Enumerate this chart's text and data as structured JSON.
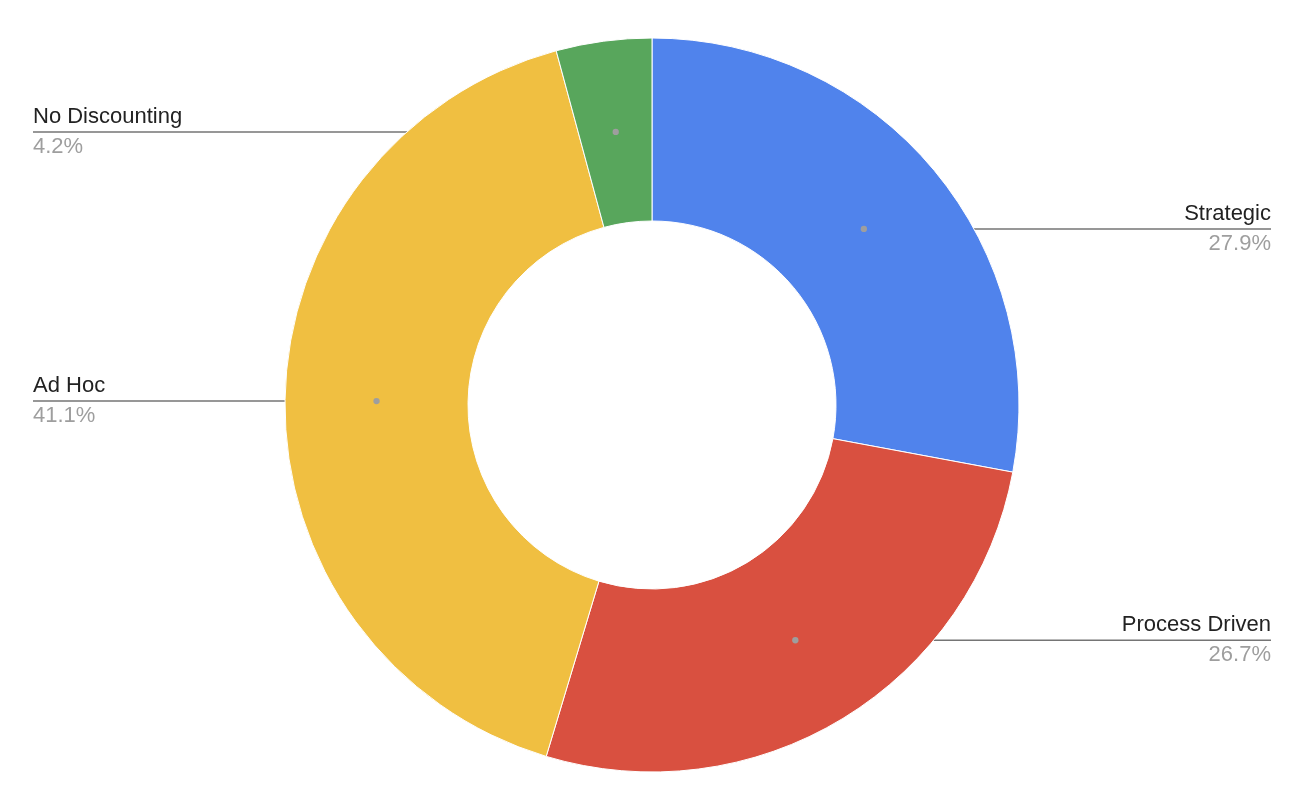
{
  "chart_data": {
    "type": "donut",
    "categories": [
      "Strategic",
      "Process Driven",
      "Ad Hoc",
      "No Discounting"
    ],
    "values": [
      27.9,
      26.7,
      41.1,
      4.2
    ],
    "value_labels": [
      "27.9%",
      "26.7%",
      "41.1%",
      "4.2%"
    ],
    "colors": [
      "#5083ec",
      "#d95040",
      "#f0bf41",
      "#58a65c"
    ]
  }
}
